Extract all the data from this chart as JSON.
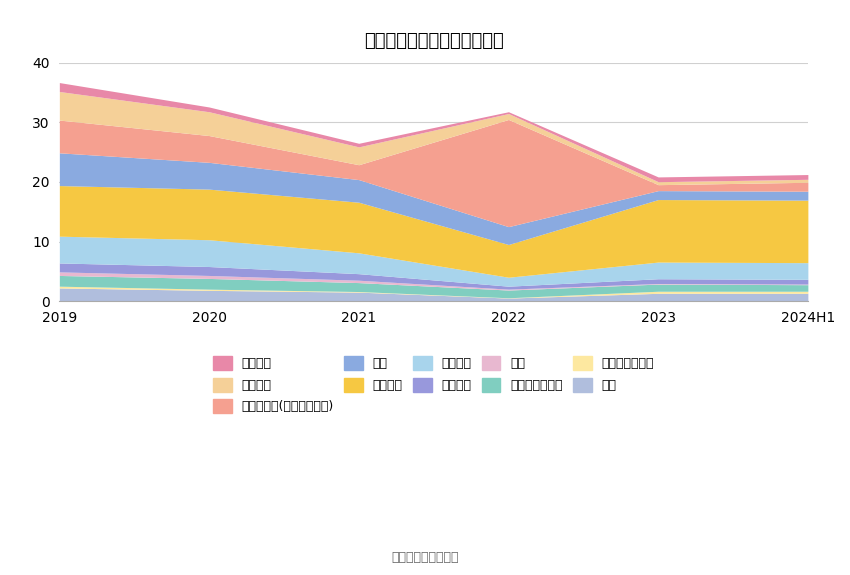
{
  "title": "历年主要资产堆积图（亿元）",
  "x_labels": [
    "2019",
    "2020",
    "2021",
    "2022",
    "2023",
    "2024H1"
  ],
  "x_positions": [
    0,
    1,
    2,
    3,
    4,
    5
  ],
  "ylim": [
    0,
    40
  ],
  "yticks": [
    0,
    10,
    20,
    30,
    40
  ],
  "source_text": "数据来源：恒生聚源",
  "background_color": "#ffffff",
  "series": [
    {
      "name": "其它",
      "color": "#b0bedd",
      "values": [
        2.2,
        1.8,
        1.5,
        0.5,
        1.3,
        1.3
      ]
    },
    {
      "name": "其他非流动资产",
      "color": "#fde8a0",
      "values": [
        0.3,
        0.2,
        0.1,
        0.05,
        0.35,
        0.35
      ]
    },
    {
      "name": "递延所得税资产",
      "color": "#80cec0",
      "values": [
        1.8,
        1.8,
        1.5,
        1.3,
        1.2,
        1.1
      ]
    },
    {
      "name": "商誉",
      "color": "#e8b8d0",
      "values": [
        0.6,
        0.5,
        0.4,
        0.15,
        0.1,
        0.1
      ]
    },
    {
      "name": "无形资产",
      "color": "#9898dc",
      "values": [
        1.5,
        1.5,
        1.1,
        0.5,
        0.8,
        0.8
      ]
    },
    {
      "name": "在建工程",
      "color": "#a8d4ec",
      "values": [
        4.5,
        4.5,
        3.5,
        1.5,
        2.8,
        2.8
      ]
    },
    {
      "name": "固定资产",
      "color": "#f6c842",
      "values": [
        8.5,
        8.5,
        8.5,
        5.5,
        10.5,
        10.5
      ]
    },
    {
      "name": "存货",
      "color": "#8aaae0",
      "values": [
        5.5,
        4.5,
        3.8,
        3.0,
        1.5,
        1.5
      ]
    },
    {
      "name": "其他应收款(含利息和股利)",
      "color": "#f5a090",
      "values": [
        5.5,
        4.5,
        2.5,
        18.0,
        1.0,
        1.5
      ]
    },
    {
      "name": "应收账款",
      "color": "#f5d098",
      "values": [
        4.8,
        4.0,
        3.0,
        1.0,
        0.5,
        0.5
      ]
    },
    {
      "name": "货币资金",
      "color": "#e888a8",
      "values": [
        1.5,
        0.8,
        0.6,
        0.3,
        0.8,
        0.8
      ]
    }
  ],
  "legend_order": [
    {
      "name": "货币资金",
      "color": "#e888a8"
    },
    {
      "name": "应收账款",
      "color": "#f5d098"
    },
    {
      "name": "其他应收款(含利息和股利)",
      "color": "#f5a090"
    },
    {
      "name": "存货",
      "color": "#8aaae0"
    },
    {
      "name": "固定资产",
      "color": "#f6c842"
    },
    {
      "name": "在建工程",
      "color": "#a8d4ec"
    },
    {
      "name": "无形资产",
      "color": "#9898dc"
    },
    {
      "name": "商誉",
      "color": "#e8b8d0"
    },
    {
      "name": "递延所得税资产",
      "color": "#80cec0"
    },
    {
      "name": "其他非流动资产",
      "color": "#fde8a0"
    },
    {
      "name": "其它",
      "color": "#b0bedd"
    }
  ]
}
